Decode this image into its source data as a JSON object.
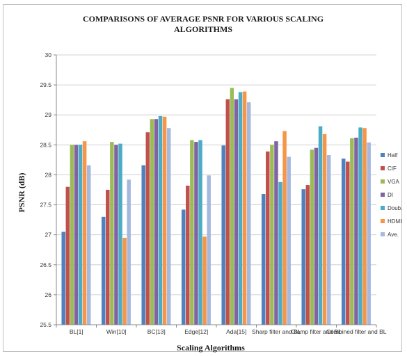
{
  "chart_data": {
    "type": "bar",
    "title_lines": [
      "COMPARISONS OF AVERAGE PSNR FOR VARIOUS SCALING",
      "ALGORITHMS"
    ],
    "xlabel": "Scaling Algorithms",
    "ylabel": "PSNR (dB)",
    "ylim": [
      25.5,
      30
    ],
    "yticks": [
      "25.5",
      "26",
      "26.5",
      "27",
      "27.5",
      "28",
      "28.5",
      "29",
      "29.5",
      "30"
    ],
    "ytick_values": [
      25.5,
      26,
      26.5,
      27,
      27.5,
      28,
      28.5,
      29,
      29.5,
      30
    ],
    "grid": true,
    "legend_position": "right",
    "categories": [
      "BL[1]",
      "Win[10]",
      "BC[13]",
      "Edge[12]",
      "Ada[15]",
      "Sharp filter and BL",
      "Clamp filter and BL",
      "Combined filter and BL"
    ],
    "series": [
      {
        "name": "Half",
        "color": "#4f81bd",
        "values": [
          27.05,
          27.3,
          28.16,
          27.42,
          28.49,
          27.68,
          27.76,
          28.27
        ]
      },
      {
        "name": "CIF",
        "color": "#c0504d",
        "values": [
          27.8,
          27.75,
          28.71,
          27.82,
          29.26,
          28.39,
          27.83,
          28.22
        ]
      },
      {
        "name": "VGA",
        "color": "#9bbb59",
        "values": [
          28.5,
          28.55,
          28.93,
          28.58,
          29.45,
          28.5,
          28.42,
          28.61
        ]
      },
      {
        "name": "DI",
        "color": "#8064a2",
        "values": [
          28.5,
          28.5,
          28.93,
          28.55,
          29.26,
          28.56,
          28.45,
          28.62
        ]
      },
      {
        "name": "Doub.",
        "color": "#4bacc6",
        "values": [
          28.5,
          28.52,
          28.98,
          28.58,
          29.38,
          27.88,
          28.81,
          28.79
        ]
      },
      {
        "name": "HDMI",
        "color": "#f79646",
        "values": [
          28.56,
          26.95,
          28.97,
          26.97,
          29.39,
          28.73,
          28.68,
          28.78
        ]
      },
      {
        "name": "Ave.",
        "color": "#a5b8e0",
        "values": [
          28.16,
          27.92,
          28.78,
          27.99,
          29.21,
          28.3,
          28.33,
          28.54
        ]
      }
    ]
  }
}
